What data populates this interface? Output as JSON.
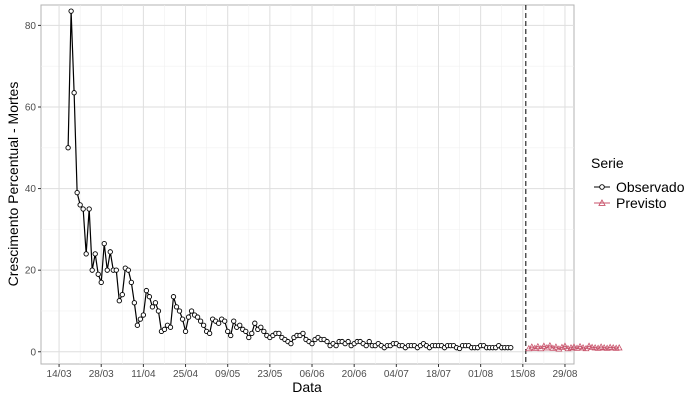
{
  "chart_data": {
    "type": "line",
    "xlabel": "Data",
    "ylabel": "Crescimento Percentual - Mortes",
    "x_tick_labels": [
      "14/03",
      "28/03",
      "11/04",
      "25/04",
      "09/05",
      "23/05",
      "06/06",
      "20/06",
      "04/07",
      "18/07",
      "01/08",
      "15/08",
      "29/08"
    ],
    "y_ticks": [
      0,
      20,
      40,
      60,
      80
    ],
    "ylim": [
      -3,
      85
    ],
    "x_start_date": "2020-03-08",
    "x_end_date": "2020-09-01",
    "grid": true,
    "vline_date": "2020-08-16",
    "legend": {
      "title": "Serie",
      "position": "right"
    },
    "series": [
      {
        "name": "Observado",
        "color": "#000000",
        "marker": "circle",
        "start_date": "2020-03-17",
        "values": [
          50.0,
          83.5,
          63.5,
          39.0,
          36.0,
          35.0,
          24.0,
          35.0,
          20.0,
          24.0,
          19.0,
          17.0,
          26.5,
          20.0,
          24.5,
          20.0,
          20.0,
          12.5,
          14.0,
          20.5,
          20.0,
          17.0,
          12.0,
          6.5,
          8.0,
          9.0,
          15.0,
          13.5,
          11.0,
          12.0,
          10.0,
          5.0,
          5.5,
          6.5,
          6.0,
          13.5,
          11.0,
          10.0,
          8.0,
          5.0,
          8.5,
          10.0,
          9.0,
          8.5,
          7.5,
          6.5,
          5.0,
          4.5,
          8.0,
          7.5,
          7.0,
          8.0,
          7.5,
          5.0,
          4.0,
          7.5,
          6.0,
          6.5,
          5.5,
          5.0,
          3.5,
          4.5,
          7.0,
          5.5,
          6.0,
          5.0,
          4.0,
          3.5,
          4.0,
          4.5,
          4.5,
          3.5,
          3.0,
          2.5,
          2.0,
          3.5,
          4.0,
          4.0,
          4.5,
          3.0,
          2.5,
          2.0,
          3.0,
          3.5,
          3.0,
          3.0,
          2.5,
          1.5,
          2.0,
          1.5,
          2.5,
          2.5,
          2.0,
          2.5,
          1.5,
          2.0,
          2.5,
          2.5,
          2.0,
          1.5,
          2.5,
          1.5,
          1.5,
          2.0,
          1.5,
          1.0,
          1.5,
          1.5,
          2.0,
          2.0,
          1.5,
          1.5,
          1.0,
          1.5,
          1.5,
          1.5,
          1.0,
          1.5,
          2.0,
          1.5,
          1.0,
          1.5,
          1.5,
          1.5,
          1.5,
          1.0,
          1.5,
          1.5,
          1.5,
          1.0,
          0.8,
          1.5,
          1.5,
          1.5,
          1.0,
          1.0,
          1.0,
          1.5,
          1.5,
          1.0,
          1.0,
          1.0,
          1.0,
          1.5,
          1.0,
          1.0,
          1.0,
          1.0
        ]
      },
      {
        "name": "Previsto",
        "color": "#c8536b",
        "marker": "triangle",
        "start_date": "2020-08-17",
        "values": [
          0.8,
          1.2,
          0.9,
          1.3,
          0.8,
          1.4,
          1.0,
          1.5,
          0.9,
          1.2,
          0.7,
          1.1,
          1.4,
          0.8,
          1.0,
          1.2,
          0.9,
          1.3,
          1.0,
          0.8,
          1.4,
          1.1,
          1.0,
          0.9,
          1.2,
          1.0,
          0.9,
          1.1,
          1.0,
          0.9,
          1.0
        ]
      }
    ]
  }
}
